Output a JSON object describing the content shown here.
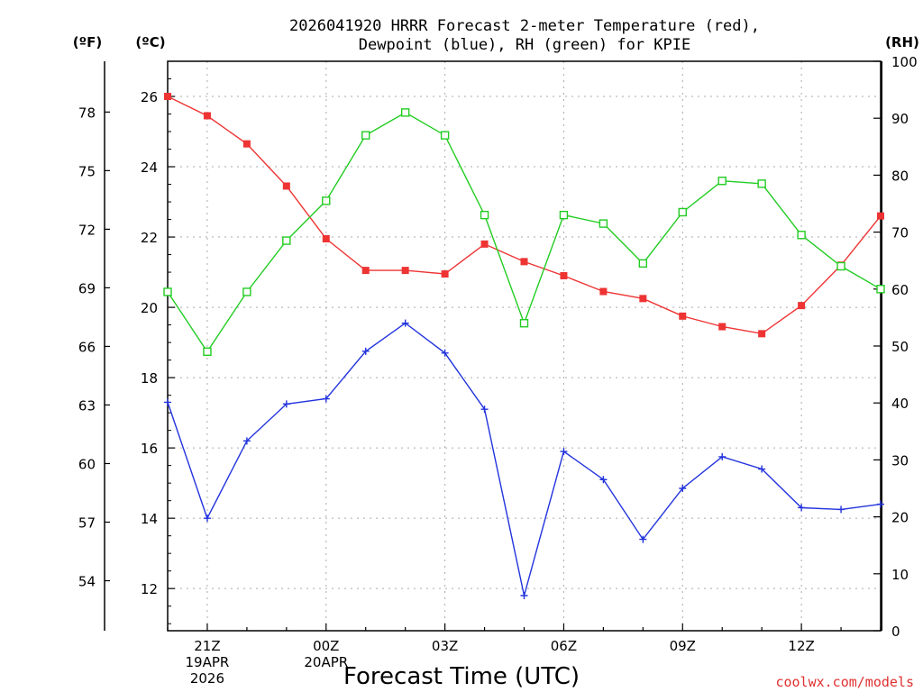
{
  "title_line1": "2026041920 HRRR Forecast 2-meter Temperature (red),",
  "title_line2": "Dewpoint (blue), RH (green) for KPIE",
  "unit_f": "(ºF)",
  "unit_c": "(ºC)",
  "unit_rh": "(RH)",
  "xlabel": "Forecast Time (UTC)",
  "credit": "coolwx.com/models",
  "colors": {
    "temperature": "#ee3333",
    "dewpoint": "#2233dd",
    "rh": "#22cc22",
    "credit": "#e03030",
    "grid": "#aaaaaa"
  },
  "chart_data": {
    "type": "line",
    "title": "2026041920 HRRR Forecast 2-meter Temperature (red), Dewpoint (blue), RH (green) for KPIE",
    "xlabel": "Forecast Time (UTC)",
    "x_hours": [
      20,
      21,
      22,
      23,
      24,
      25,
      26,
      27,
      28,
      29,
      30,
      31,
      32,
      33,
      34,
      35,
      36,
      37,
      38
    ],
    "xlim": [
      20,
      38
    ],
    "x_ticks": [
      {
        "hour": 21,
        "lines": [
          "21Z",
          "19APR",
          "2026"
        ]
      },
      {
        "hour": 24,
        "lines": [
          "00Z",
          "20APR"
        ]
      },
      {
        "hour": 27,
        "lines": [
          "03Z"
        ]
      },
      {
        "hour": 30,
        "lines": [
          "06Z"
        ]
      },
      {
        "hour": 33,
        "lines": [
          "09Z"
        ]
      },
      {
        "hour": 36,
        "lines": [
          "12Z"
        ]
      }
    ],
    "grid": true,
    "axes": {
      "celsius": {
        "ylim": [
          10.8,
          27.0
        ],
        "ticks": [
          12,
          14,
          16,
          18,
          20,
          22,
          24,
          26
        ]
      },
      "fahrenheit": {
        "ylim": [
          51.44,
          80.6
        ],
        "ticks": [
          54,
          57,
          60,
          63,
          66,
          69,
          72,
          75,
          78
        ]
      },
      "rh": {
        "ylim": [
          0,
          100
        ],
        "ticks": [
          0,
          10,
          20,
          30,
          40,
          50,
          60,
          70,
          80,
          90,
          100
        ]
      }
    },
    "series": [
      {
        "key": "temperature",
        "axis": "celsius",
        "marker": "filled-square",
        "values": [
          26.0,
          25.45,
          24.65,
          23.45,
          21.95,
          21.05,
          21.05,
          20.95,
          21.8,
          21.3,
          20.9,
          20.45,
          20.25,
          19.75,
          19.45,
          19.25,
          20.05,
          21.2,
          22.6
        ]
      },
      {
        "key": "dewpoint",
        "axis": "celsius",
        "marker": "plus",
        "values": [
          17.3,
          14.0,
          16.2,
          17.25,
          17.4,
          18.75,
          19.55,
          18.7,
          17.1,
          11.8,
          15.9,
          15.1,
          13.4,
          14.85,
          15.75,
          15.4,
          14.3,
          14.25,
          14.4
        ]
      },
      {
        "key": "rh",
        "axis": "rh",
        "marker": "open-square",
        "values": [
          59.5,
          49.0,
          59.5,
          68.5,
          75.5,
          87.0,
          91.0,
          87.0,
          73.0,
          54.0,
          73.0,
          71.5,
          64.5,
          73.5,
          79.0,
          78.5,
          69.5,
          64.0,
          60.0
        ]
      }
    ]
  }
}
